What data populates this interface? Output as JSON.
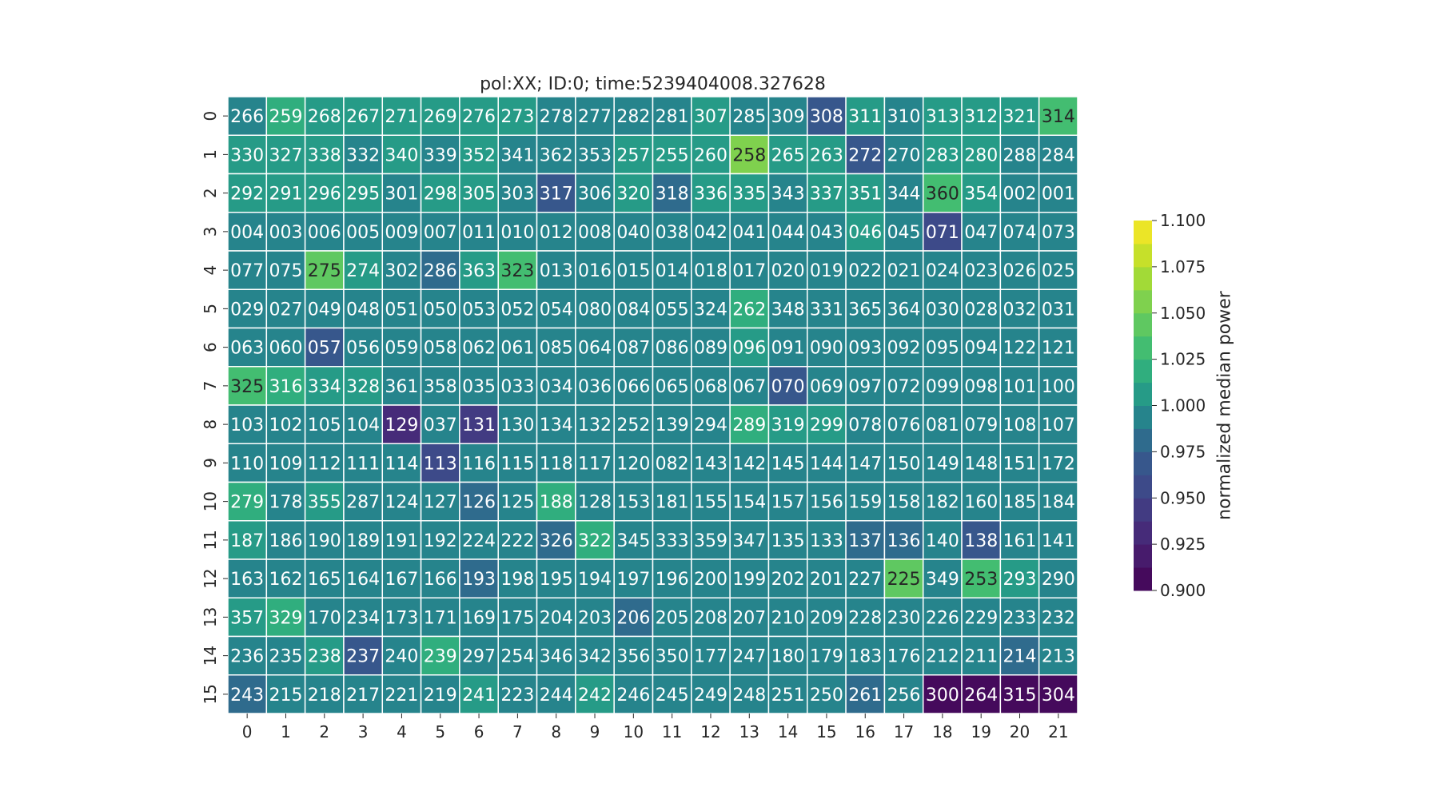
{
  "chart_data": {
    "type": "heatmap",
    "title": "pol:XX; ID:0; time:5239404008.327628",
    "colorbar": {
      "label": "normalized median power",
      "vmin": 0.9,
      "vmax": 1.1,
      "ticks": [
        "0.900",
        "0.925",
        "0.950",
        "0.975",
        "1.000",
        "1.025",
        "1.050",
        "1.075",
        "1.100"
      ],
      "colormap": "viridis",
      "levels": 16
    },
    "x_ticks": [
      "0",
      "1",
      "2",
      "3",
      "4",
      "5",
      "6",
      "7",
      "8",
      "9",
      "10",
      "11",
      "12",
      "13",
      "14",
      "15",
      "16",
      "17",
      "18",
      "19",
      "20",
      "21"
    ],
    "y_ticks": [
      "0",
      "1",
      "2",
      "3",
      "4",
      "5",
      "6",
      "7",
      "8",
      "9",
      "10",
      "11",
      "12",
      "13",
      "14",
      "15"
    ],
    "annotations": [
      [
        "266",
        "259",
        "268",
        "267",
        "271",
        "269",
        "276",
        "273",
        "278",
        "277",
        "282",
        "281",
        "307",
        "285",
        "309",
        "308",
        "311",
        "310",
        "313",
        "312",
        "321",
        "314"
      ],
      [
        "330",
        "327",
        "338",
        "332",
        "340",
        "339",
        "352",
        "341",
        "362",
        "353",
        "257",
        "255",
        "260",
        "258",
        "265",
        "263",
        "272",
        "270",
        "283",
        "280",
        "288",
        "284"
      ],
      [
        "292",
        "291",
        "296",
        "295",
        "301",
        "298",
        "305",
        "303",
        "317",
        "306",
        "320",
        "318",
        "336",
        "335",
        "343",
        "337",
        "351",
        "344",
        "360",
        "354",
        "002",
        "001"
      ],
      [
        "004",
        "003",
        "006",
        "005",
        "009",
        "007",
        "011",
        "010",
        "012",
        "008",
        "040",
        "038",
        "042",
        "041",
        "044",
        "043",
        "046",
        "045",
        "071",
        "047",
        "074",
        "073"
      ],
      [
        "077",
        "075",
        "275",
        "274",
        "302",
        "286",
        "363",
        "323",
        "013",
        "016",
        "015",
        "014",
        "018",
        "017",
        "020",
        "019",
        "022",
        "021",
        "024",
        "023",
        "026",
        "025"
      ],
      [
        "029",
        "027",
        "049",
        "048",
        "051",
        "050",
        "053",
        "052",
        "054",
        "080",
        "084",
        "055",
        "324",
        "262",
        "348",
        "331",
        "365",
        "364",
        "030",
        "028",
        "032",
        "031"
      ],
      [
        "063",
        "060",
        "057",
        "056",
        "059",
        "058",
        "062",
        "061",
        "085",
        "064",
        "087",
        "086",
        "089",
        "096",
        "091",
        "090",
        "093",
        "092",
        "095",
        "094",
        "122",
        "121"
      ],
      [
        "325",
        "316",
        "334",
        "328",
        "361",
        "358",
        "035",
        "033",
        "034",
        "036",
        "066",
        "065",
        "068",
        "067",
        "070",
        "069",
        "097",
        "072",
        "099",
        "098",
        "101",
        "100"
      ],
      [
        "103",
        "102",
        "105",
        "104",
        "129",
        "037",
        "131",
        "130",
        "134",
        "132",
        "252",
        "139",
        "294",
        "289",
        "319",
        "299",
        "078",
        "076",
        "081",
        "079",
        "108",
        "107"
      ],
      [
        "110",
        "109",
        "112",
        "111",
        "114",
        "113",
        "116",
        "115",
        "118",
        "117",
        "120",
        "082",
        "143",
        "142",
        "145",
        "144",
        "147",
        "150",
        "149",
        "148",
        "151",
        "172"
      ],
      [
        "279",
        "178",
        "355",
        "287",
        "124",
        "127",
        "126",
        "125",
        "188",
        "128",
        "153",
        "181",
        "155",
        "154",
        "157",
        "156",
        "159",
        "158",
        "182",
        "160",
        "185",
        "184"
      ],
      [
        "187",
        "186",
        "190",
        "189",
        "191",
        "192",
        "224",
        "222",
        "326",
        "322",
        "345",
        "333",
        "359",
        "347",
        "135",
        "133",
        "137",
        "136",
        "140",
        "138",
        "161",
        "141"
      ],
      [
        "163",
        "162",
        "165",
        "164",
        "167",
        "166",
        "193",
        "198",
        "195",
        "194",
        "197",
        "196",
        "200",
        "199",
        "202",
        "201",
        "227",
        "225",
        "349",
        "253",
        "293",
        "290"
      ],
      [
        "357",
        "329",
        "170",
        "234",
        "173",
        "171",
        "169",
        "175",
        "204",
        "203",
        "206",
        "205",
        "208",
        "207",
        "210",
        "209",
        "228",
        "230",
        "226",
        "229",
        "233",
        "232"
      ],
      [
        "236",
        "235",
        "238",
        "237",
        "240",
        "239",
        "297",
        "254",
        "346",
        "342",
        "356",
        "350",
        "177",
        "247",
        "180",
        "179",
        "183",
        "176",
        "212",
        "211",
        "214",
        "213"
      ],
      [
        "243",
        "215",
        "218",
        "217",
        "221",
        "219",
        "241",
        "223",
        "244",
        "242",
        "246",
        "245",
        "249",
        "248",
        "251",
        "250",
        "261",
        "256",
        "300",
        "264",
        "315",
        "304"
      ]
    ],
    "values": [
      [
        1.0,
        1.015,
        1.005,
        1.01,
        1.005,
        1.005,
        1.005,
        1.005,
        1.0,
        0.99,
        1.0,
        1.0,
        1.005,
        1.0,
        1.0,
        0.975,
        1.01,
        1.0,
        1.005,
        1.005,
        1.005,
        1.03
      ],
      [
        1.005,
        1.005,
        1.005,
        1.0,
        1.005,
        1.0,
        1.01,
        1.0,
        1.0,
        1.0,
        1.01,
        1.005,
        1.005,
        1.06,
        1.01,
        1.005,
        0.97,
        1.0,
        1.005,
        1.005,
        1.0,
        1.0
      ],
      [
        1.01,
        1.01,
        1.01,
        1.01,
        1.0,
        1.005,
        1.01,
        1.0,
        0.965,
        1.0,
        1.005,
        0.98,
        1.005,
        1.005,
        1.0,
        1.005,
        1.005,
        1.0,
        1.03,
        1.005,
        1.0,
        1.0
      ],
      [
        1.0,
        1.0,
        1.0,
        1.0,
        1.0,
        1.0,
        1.0,
        1.0,
        1.0,
        1.0,
        1.0,
        1.0,
        1.0,
        1.0,
        1.0,
        1.0,
        1.01,
        1.0,
        0.955,
        1.0,
        1.0,
        1.0
      ],
      [
        1.0,
        1.0,
        1.04,
        1.005,
        1.0,
        0.98,
        1.01,
        1.03,
        1.0,
        1.0,
        1.0,
        1.0,
        1.0,
        1.0,
        1.0,
        1.0,
        1.0,
        1.0,
        1.0,
        1.0,
        1.0,
        1.0
      ],
      [
        1.0,
        1.0,
        1.0,
        1.0,
        1.0,
        1.0,
        1.0,
        1.0,
        1.0,
        1.0,
        1.0,
        1.0,
        1.0,
        1.02,
        1.0,
        1.0,
        1.0,
        1.0,
        1.0,
        1.0,
        1.0,
        1.0
      ],
      [
        1.0,
        1.0,
        0.97,
        1.0,
        1.0,
        1.0,
        1.0,
        1.0,
        1.0,
        1.0,
        1.0,
        1.0,
        1.0,
        1.005,
        1.0,
        1.0,
        1.0,
        1.0,
        1.0,
        1.0,
        1.0,
        1.0
      ],
      [
        1.03,
        1.015,
        1.005,
        1.005,
        1.0,
        1.0,
        1.0,
        1.0,
        0.995,
        1.0,
        1.0,
        1.0,
        1.0,
        1.0,
        0.97,
        1.0,
        1.0,
        1.0,
        1.0,
        1.0,
        1.0,
        1.0
      ],
      [
        1.0,
        1.0,
        1.0,
        1.0,
        0.935,
        1.0,
        0.94,
        1.0,
        1.0,
        1.0,
        1.0,
        1.0,
        1.0,
        1.02,
        1.005,
        1.01,
        1.0,
        1.0,
        1.0,
        1.0,
        1.0,
        1.0
      ],
      [
        1.0,
        1.0,
        1.0,
        1.0,
        1.0,
        0.96,
        1.0,
        1.0,
        1.0,
        1.0,
        1.0,
        1.0,
        1.0,
        1.0,
        1.0,
        1.0,
        1.0,
        1.0,
        1.0,
        1.0,
        1.0,
        1.0
      ],
      [
        1.015,
        1.0,
        1.01,
        1.0,
        1.0,
        1.0,
        0.985,
        1.0,
        1.02,
        1.0,
        1.0,
        1.0,
        1.0,
        1.0,
        1.0,
        1.0,
        1.0,
        1.0,
        1.0,
        1.0,
        1.0,
        1.0
      ],
      [
        1.005,
        1.0,
        1.0,
        1.0,
        1.0,
        1.0,
        1.0,
        0.99,
        0.98,
        1.015,
        1.0,
        1.0,
        1.0,
        1.0,
        1.0,
        1.0,
        0.98,
        0.985,
        1.0,
        0.975,
        1.0,
        1.0
      ],
      [
        1.0,
        1.0,
        1.0,
        1.0,
        1.0,
        1.0,
        0.985,
        0.99,
        1.0,
        1.0,
        1.0,
        1.0,
        1.0,
        1.0,
        1.0,
        1.0,
        1.0,
        1.04,
        1.0,
        1.03,
        1.01,
        1.0
      ],
      [
        1.005,
        1.015,
        1.0,
        1.0,
        1.0,
        1.0,
        1.0,
        1.0,
        1.0,
        1.0,
        0.985,
        1.0,
        1.0,
        1.0,
        1.0,
        1.0,
        1.0,
        1.0,
        1.0,
        1.0,
        1.0,
        1.0
      ],
      [
        1.0,
        1.0,
        1.005,
        0.975,
        1.0,
        1.02,
        1.0,
        1.0,
        1.0,
        1.0,
        1.0,
        1.0,
        1.0,
        1.0,
        1.0,
        1.0,
        1.0,
        1.0,
        1.0,
        1.0,
        0.985,
        1.0
      ],
      [
        0.985,
        1.0,
        1.0,
        1.0,
        1.0,
        1.0,
        1.005,
        1.0,
        1.0,
        1.005,
        1.0,
        1.0,
        1.0,
        1.0,
        1.0,
        1.0,
        0.98,
        1.0,
        0.9,
        0.9,
        0.9,
        0.9
      ]
    ]
  }
}
